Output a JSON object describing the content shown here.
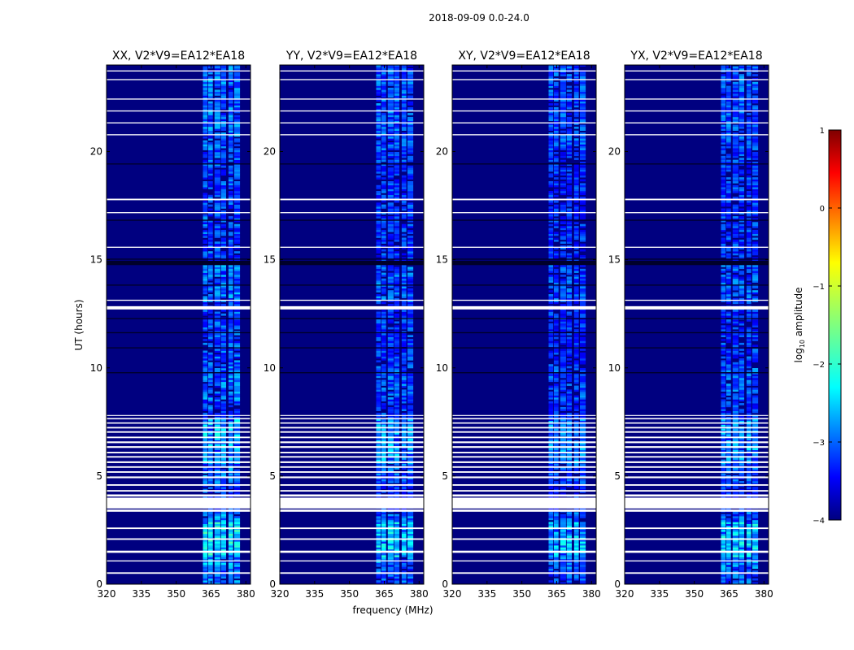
{
  "chart_data": {
    "type": "heatmap",
    "title": "2018-09-09 0.0-24.0",
    "xlabel": "frequency (MHz)",
    "ylabel": "UT (hours)",
    "xlim": [
      320,
      382
    ],
    "ylim": [
      0,
      24
    ],
    "x_ticks": [
      320,
      335,
      350,
      365,
      380
    ],
    "y_ticks": [
      0,
      5,
      10,
      15,
      20
    ],
    "colorbar": {
      "label": "log10 amplitude",
      "range": [
        -4,
        1
      ],
      "ticks": [
        1,
        0,
        -1,
        -2,
        -3,
        -4
      ],
      "colormap": "jet"
    },
    "panels": [
      {
        "title": "XX, V2*V9=EA12*EA18",
        "band_strength": 1.0
      },
      {
        "title": "YY, V2*V9=EA12*EA18",
        "band_strength": 0.9
      },
      {
        "title": "XY, V2*V9=EA12*EA18",
        "band_strength": 0.85
      },
      {
        "title": "YX, V2*V9=EA12*EA18",
        "band_strength": 0.9
      }
    ],
    "signal_band_mhz": [
      361,
      378
    ],
    "signal_columns_mhz": [
      {
        "start": 361.5,
        "end": 363.5
      },
      {
        "start": 363.8,
        "end": 365.8
      },
      {
        "start": 366.5,
        "end": 369.0
      },
      {
        "start": 369.3,
        "end": 371.5
      },
      {
        "start": 372.5,
        "end": 374.5
      },
      {
        "start": 375.0,
        "end": 377.5
      }
    ],
    "strength_profile_hours": [
      {
        "range": [
          0.0,
          0.6
        ],
        "level": -2.8
      },
      {
        "range": [
          0.6,
          1.2
        ],
        "level": -2.6
      },
      {
        "range": [
          1.2,
          2.8
        ],
        "level": -2.1
      },
      {
        "range": [
          2.8,
          3.4
        ],
        "level": -2.7
      },
      {
        "range": [
          4.5,
          5.5
        ],
        "level": -2.8
      },
      {
        "range": [
          5.5,
          7.6
        ],
        "level": -2.4
      },
      {
        "range": [
          7.6,
          8.5
        ],
        "level": -3.0
      },
      {
        "range": [
          8.5,
          10.0
        ],
        "level": -2.8
      },
      {
        "range": [
          10.0,
          12.7
        ],
        "level": -3.0
      },
      {
        "range": [
          13.0,
          14.8
        ],
        "level": -2.8
      },
      {
        "range": [
          15.0,
          17.0
        ],
        "level": -3.0
      },
      {
        "range": [
          17.0,
          20.0
        ],
        "level": -3.0
      },
      {
        "range": [
          20.0,
          24.0
        ],
        "level": -2.8
      }
    ],
    "blank_gaps_hours": [
      [
        0.48,
        0.55
      ],
      [
        1.05,
        1.1
      ],
      [
        1.45,
        1.55
      ],
      [
        2.05,
        2.12
      ],
      [
        2.55,
        2.62
      ],
      [
        3.35,
        3.45
      ],
      [
        3.5,
        4.0
      ],
      [
        4.05,
        4.15
      ],
      [
        4.28,
        4.35
      ],
      [
        4.55,
        4.62
      ],
      [
        4.9,
        4.98
      ],
      [
        5.15,
        5.22
      ],
      [
        5.38,
        5.45
      ],
      [
        5.6,
        5.68
      ],
      [
        5.85,
        5.92
      ],
      [
        6.05,
        6.12
      ],
      [
        6.3,
        6.38
      ],
      [
        6.52,
        6.6
      ],
      [
        6.75,
        6.82
      ],
      [
        7.0,
        7.07
      ],
      [
        7.2,
        7.27
      ],
      [
        7.42,
        7.48
      ],
      [
        7.62,
        7.68
      ],
      [
        7.78,
        7.82
      ],
      [
        12.7,
        12.85
      ],
      [
        13.1,
        13.15
      ],
      [
        17.15,
        17.2
      ],
      [
        17.75,
        17.82
      ],
      [
        15.55,
        15.6
      ],
      [
        20.75,
        20.8
      ],
      [
        21.85,
        21.9
      ],
      [
        22.4,
        22.45
      ],
      [
        23.3,
        23.35
      ],
      [
        23.7,
        23.75
      ],
      [
        21.3,
        21.35
      ]
    ],
    "dark_rows_hours": [
      [
        14.75,
        14.95
      ],
      [
        15.0,
        15.05
      ],
      [
        10.9,
        10.95
      ],
      [
        12.25,
        12.3
      ],
      [
        9.75,
        9.8
      ],
      [
        11.6,
        11.65
      ],
      [
        13.8,
        13.85
      ],
      [
        16.8,
        16.85
      ],
      [
        19.4,
        19.45
      ]
    ]
  }
}
